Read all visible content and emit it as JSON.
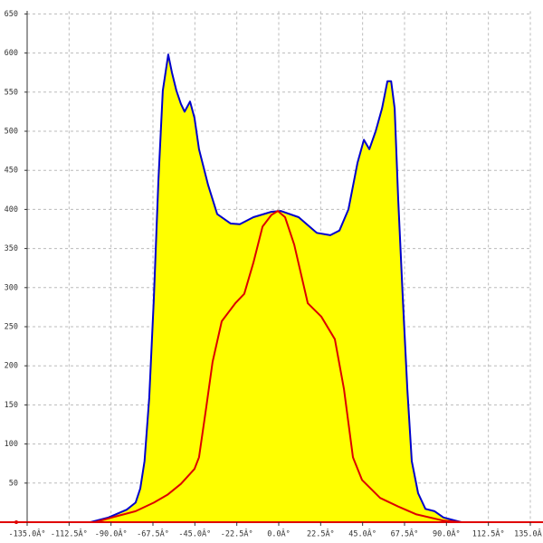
{
  "chart_data": {
    "type": "area",
    "xlim": [
      -135,
      135
    ],
    "ylim": [
      0,
      650
    ],
    "xticks": [
      {
        "value": -135,
        "label": "-135.0Â°"
      },
      {
        "value": -112.5,
        "label": "-112.5Â°"
      },
      {
        "value": -90,
        "label": "-90.0Â°"
      },
      {
        "value": -67.5,
        "label": "-67.5Â°"
      },
      {
        "value": -45,
        "label": "-45.0Â°"
      },
      {
        "value": -22.5,
        "label": "-22.5Â°"
      },
      {
        "value": 0,
        "label": "0.0Â°"
      },
      {
        "value": 22.5,
        "label": "22.5Â°"
      },
      {
        "value": 45,
        "label": "45.0Â°"
      },
      {
        "value": 67.5,
        "label": "67.5Â°"
      },
      {
        "value": 90,
        "label": "90.0Â°"
      },
      {
        "value": 112.5,
        "label": "112.5Â°"
      },
      {
        "value": 135,
        "label": "135.0Â°"
      }
    ],
    "yticks": [
      50,
      100,
      150,
      200,
      250,
      300,
      350,
      400,
      450,
      500,
      550,
      600,
      650
    ],
    "grid": true,
    "series": [
      {
        "color": "#0000cc",
        "fill": "#ffff00",
        "x": [
          -101,
          -91.4,
          -81.6,
          -76.8,
          -74.3,
          -72,
          -69.5,
          -67,
          -64.6,
          -62.2,
          -59.3,
          -57.3,
          -54.9,
          -52.5,
          -50.5,
          -47.6,
          -45.2,
          -42.8,
          -37.9,
          -33,
          -25.8,
          -20.9,
          -13.6,
          -3.9,
          1,
          10.7,
          20.4,
          27.7,
          32.6,
          37.4,
          42.3,
          45.7,
          48.6,
          52,
          55.4,
          58.3,
          60.3,
          62.2,
          64.1,
          66.6,
          69,
          71.4,
          74.8,
          78.7,
          83.6,
          88.4,
          98
        ],
        "values": [
          0,
          6,
          16,
          25,
          43,
          78,
          159,
          286,
          436,
          552,
          598,
          575,
          552,
          535,
          525,
          538,
          517,
          477,
          431,
          394,
          382,
          381,
          390,
          397,
          398,
          390,
          370,
          367,
          373,
          400,
          460,
          489,
          477,
          500,
          529,
          564,
          564,
          529,
          413,
          286,
          170,
          78,
          37,
          17,
          14,
          6,
          0
        ]
      },
      {
        "color": "#dd0000",
        "x": [
          -98.6,
          -86.5,
          -76.8,
          -67,
          -59.8,
          -52.5,
          -45.2,
          -42.8,
          -38.9,
          -35.5,
          -30.6,
          -23.3,
          -18.5,
          -13.6,
          -8.7,
          -3.9,
          -0.5,
          3.4,
          8.3,
          15.6,
          22.8,
          30.1,
          35,
          39.8,
          44.7,
          54.4,
          64.1,
          73.9,
          88.4,
          98
        ],
        "values": [
          0,
          8,
          14,
          25,
          35,
          49,
          68,
          83,
          147,
          205,
          257,
          280,
          292,
          332,
          378,
          393,
          398,
          390,
          355,
          280,
          263,
          234,
          170,
          83,
          54,
          31,
          20,
          10,
          2,
          0
        ]
      }
    ]
  }
}
